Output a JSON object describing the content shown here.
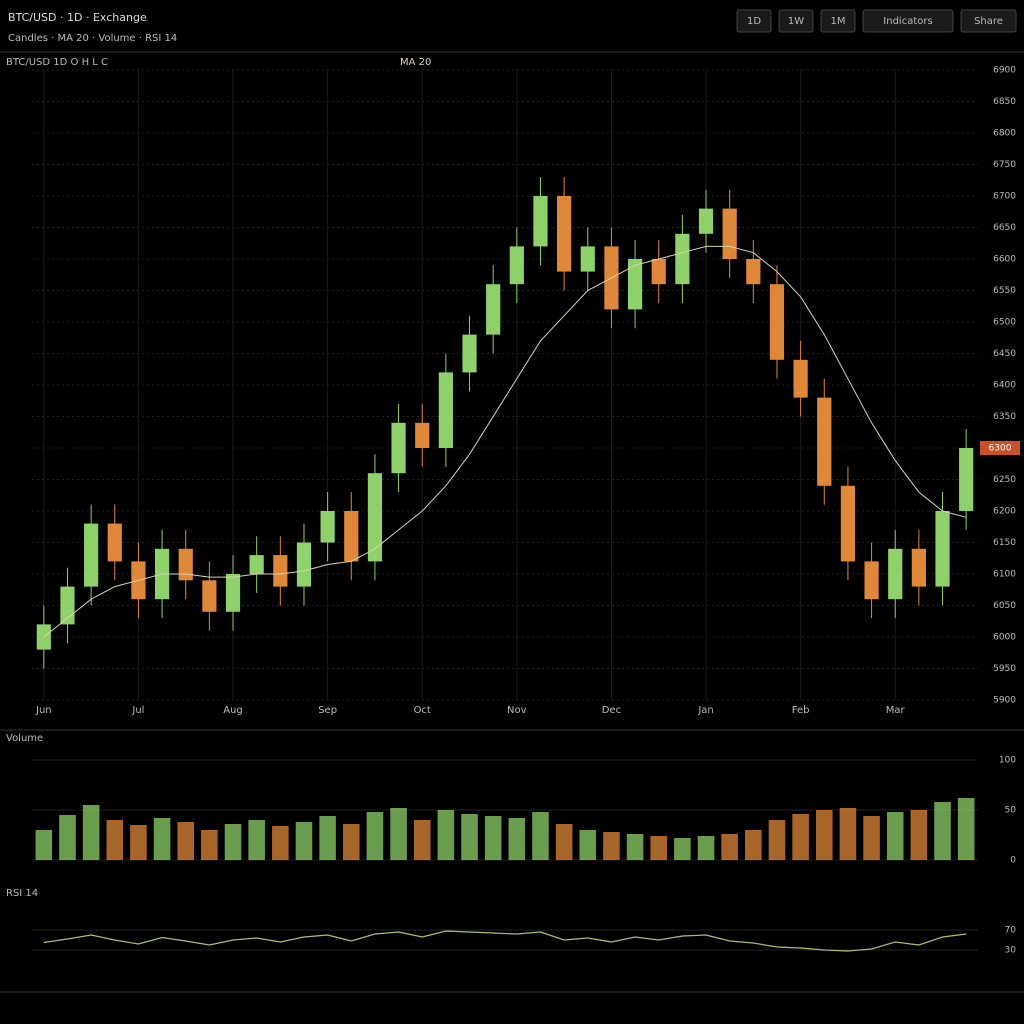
{
  "header": {
    "title": "BTC/USD · 1D · Exchange",
    "subtitle": "Candles · MA 20 · Volume · RSI 14",
    "buttons": [
      "1D",
      "1W",
      "1M",
      "Indicators",
      "Share"
    ]
  },
  "chart_data": [
    {
      "type": "candlestick",
      "title": "BTC/USD 1D  O H L C",
      "up_color": "#8fd16a",
      "down_color": "#e0883a",
      "open": [
        5980,
        6020,
        6080,
        6180,
        6120,
        6060,
        6140,
        6090,
        6040,
        6100,
        6130,
        6080,
        6150,
        6200,
        6120,
        6260,
        6340,
        6300,
        6420,
        6480,
        6560,
        6620,
        6700,
        6580,
        6620,
        6520,
        6600,
        6560,
        6640,
        6680,
        6600,
        6560,
        6440,
        6380,
        6240,
        6120,
        6060,
        6140,
        6080,
        6200
      ],
      "high": [
        6050,
        6110,
        6210,
        6210,
        6150,
        6170,
        6170,
        6120,
        6130,
        6160,
        6160,
        6180,
        6230,
        6230,
        6290,
        6370,
        6370,
        6450,
        6510,
        6590,
        6650,
        6730,
        6730,
        6650,
        6650,
        6630,
        6630,
        6670,
        6710,
        6710,
        6630,
        6590,
        6470,
        6410,
        6270,
        6150,
        6170,
        6170,
        6230,
        6330
      ],
      "low": [
        5950,
        5990,
        6050,
        6090,
        6030,
        6030,
        6060,
        6010,
        6010,
        6070,
        6050,
        6050,
        6120,
        6090,
        6090,
        6230,
        6270,
        6270,
        6390,
        6450,
        6530,
        6590,
        6550,
        6550,
        6490,
        6490,
        6530,
        6530,
        6610,
        6570,
        6530,
        6410,
        6350,
        6210,
        6090,
        6030,
        6030,
        6050,
        6050,
        6170
      ],
      "close": [
        6020,
        6080,
        6180,
        6120,
        6060,
        6140,
        6090,
        6040,
        6100,
        6130,
        6080,
        6150,
        6200,
        6120,
        6260,
        6340,
        6300,
        6420,
        6480,
        6560,
        6620,
        6700,
        6580,
        6620,
        6520,
        6600,
        6560,
        6640,
        6680,
        6600,
        6560,
        6440,
        6380,
        6240,
        6120,
        6060,
        6140,
        6080,
        6200,
        6300
      ],
      "series": [
        {
          "name": "MA 20",
          "color": "#d8d4b0",
          "values": [
            6000,
            6030,
            6060,
            6080,
            6090,
            6100,
            6100,
            6095,
            6095,
            6100,
            6100,
            6105,
            6115,
            6120,
            6140,
            6170,
            6200,
            6240,
            6290,
            6350,
            6410,
            6470,
            6510,
            6550,
            6570,
            6590,
            6600,
            6610,
            6620,
            6620,
            6610,
            6580,
            6540,
            6480,
            6410,
            6340,
            6280,
            6230,
            6200,
            6190
          ]
        }
      ],
      "x_labels": [
        "Jun",
        "Jul",
        "Aug",
        "Sep",
        "Oct",
        "Nov",
        "Dec",
        "Jan",
        "Feb",
        "Mar"
      ],
      "ylim": [
        5900,
        6900
      ],
      "yticks": [
        5900,
        5950,
        6000,
        6050,
        6100,
        6150,
        6200,
        6250,
        6300,
        6350,
        6400,
        6450,
        6500,
        6550,
        6600,
        6650,
        6700,
        6750,
        6800,
        6850,
        6900
      ],
      "grid": true
    },
    {
      "type": "bar",
      "title": "Volume",
      "values": [
        30,
        45,
        55,
        40,
        35,
        42,
        38,
        30,
        36,
        40,
        34,
        38,
        44,
        36,
        48,
        52,
        40,
        50,
        46,
        44,
        42,
        48,
        36,
        30,
        28,
        26,
        24,
        22,
        24,
        26,
        30,
        40,
        46,
        50,
        52,
        44,
        48,
        50,
        58,
        62
      ],
      "ylim": [
        0,
        100
      ],
      "yticks": [
        0,
        50,
        100
      ]
    },
    {
      "type": "line",
      "title": "RSI 14",
      "color": "#a8c070",
      "values": [
        45,
        52,
        60,
        50,
        42,
        55,
        48,
        40,
        50,
        54,
        46,
        56,
        60,
        48,
        62,
        66,
        56,
        68,
        66,
        64,
        62,
        66,
        50,
        54,
        46,
        56,
        50,
        58,
        60,
        48,
        44,
        36,
        34,
        30,
        28,
        32,
        46,
        40,
        56,
        62
      ],
      "ylim": [
        0,
        100
      ],
      "yticks": [
        30,
        70
      ]
    }
  ]
}
